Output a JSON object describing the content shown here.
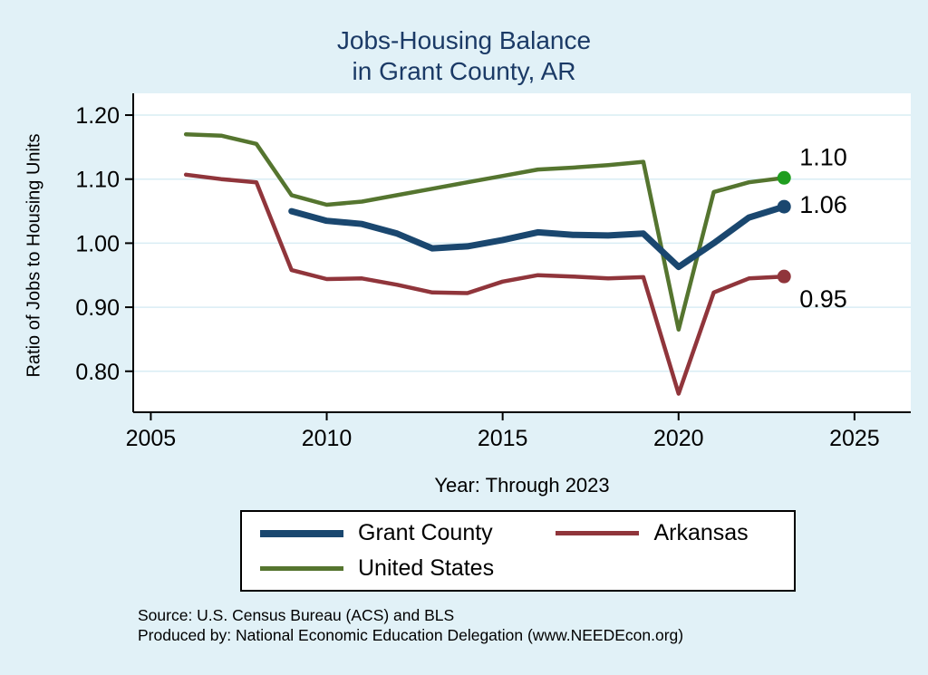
{
  "title": {
    "line1": "Jobs-Housing Balance",
    "line2": "in Grant County, AR"
  },
  "axes": {
    "ylabel": "Ratio of Jobs to Housing Units",
    "xlabel": "Year: Through 2023"
  },
  "chart_data": {
    "type": "line",
    "title": "Jobs-Housing Balance in Grant County, AR",
    "xlabel": "Year: Through 2023",
    "ylabel": "Ratio of Jobs to Housing Units",
    "x": [
      2006,
      2007,
      2008,
      2009,
      2010,
      2011,
      2012,
      2013,
      2014,
      2015,
      2016,
      2017,
      2018,
      2019,
      2020,
      2021,
      2022,
      2023
    ],
    "xlim": [
      2004.5,
      2026.6
    ],
    "ylim": [
      0.736,
      1.234
    ],
    "xticks": [
      2005,
      2010,
      2015,
      2020,
      2025
    ],
    "yticks": [
      0.8,
      0.9,
      1.0,
      1.1,
      1.2
    ],
    "grid": true,
    "legend_position": "bottom",
    "background": "#e1f1f7",
    "plot_background": "#ffffff",
    "grid_color": "#d9edf4",
    "series": [
      {
        "name": "United States",
        "color": "#55752f",
        "width": 4.5,
        "end_label": "1.10",
        "dot_color": "#1f9e1f",
        "label_dy": -14,
        "values": [
          1.17,
          1.168,
          1.155,
          1.075,
          1.06,
          1.065,
          1.075,
          1.085,
          1.095,
          1.105,
          1.115,
          1.118,
          1.122,
          1.127,
          0.865,
          1.08,
          1.095,
          1.102
        ]
      },
      {
        "name": "Arkansas",
        "color": "#90353b",
        "width": 4.5,
        "end_label": "0.95",
        "dot_color": "#90353b",
        "label_dy": 34,
        "values": [
          1.107,
          1.1,
          1.095,
          0.958,
          0.944,
          0.945,
          0.935,
          0.923,
          0.922,
          0.94,
          0.95,
          0.948,
          0.945,
          0.947,
          0.765,
          0.923,
          0.945,
          0.948
        ]
      },
      {
        "name": "Grant County",
        "color": "#1a476f",
        "width": 7,
        "end_label": "1.06",
        "dot_color": "#1a476f",
        "label_dy": 7,
        "values": [
          null,
          null,
          null,
          1.05,
          1.035,
          1.03,
          1.015,
          0.992,
          0.995,
          1.005,
          1.017,
          1.013,
          1.012,
          1.015,
          0.963,
          1.0,
          1.04,
          1.057
        ]
      }
    ]
  },
  "legend": {
    "items": [
      {
        "label": "Grant County",
        "color": "#1a476f",
        "thick": 8
      },
      {
        "label": "Arkansas",
        "color": "#90353b",
        "thick": 5
      },
      {
        "label": "United States",
        "color": "#55752f",
        "thick": 5
      }
    ]
  },
  "footer": {
    "line1": "Source: U.S. Census Bureau (ACS) and BLS",
    "line2": "Produced by: National Economic Education Delegation (www.NEEDEcon.org)"
  }
}
